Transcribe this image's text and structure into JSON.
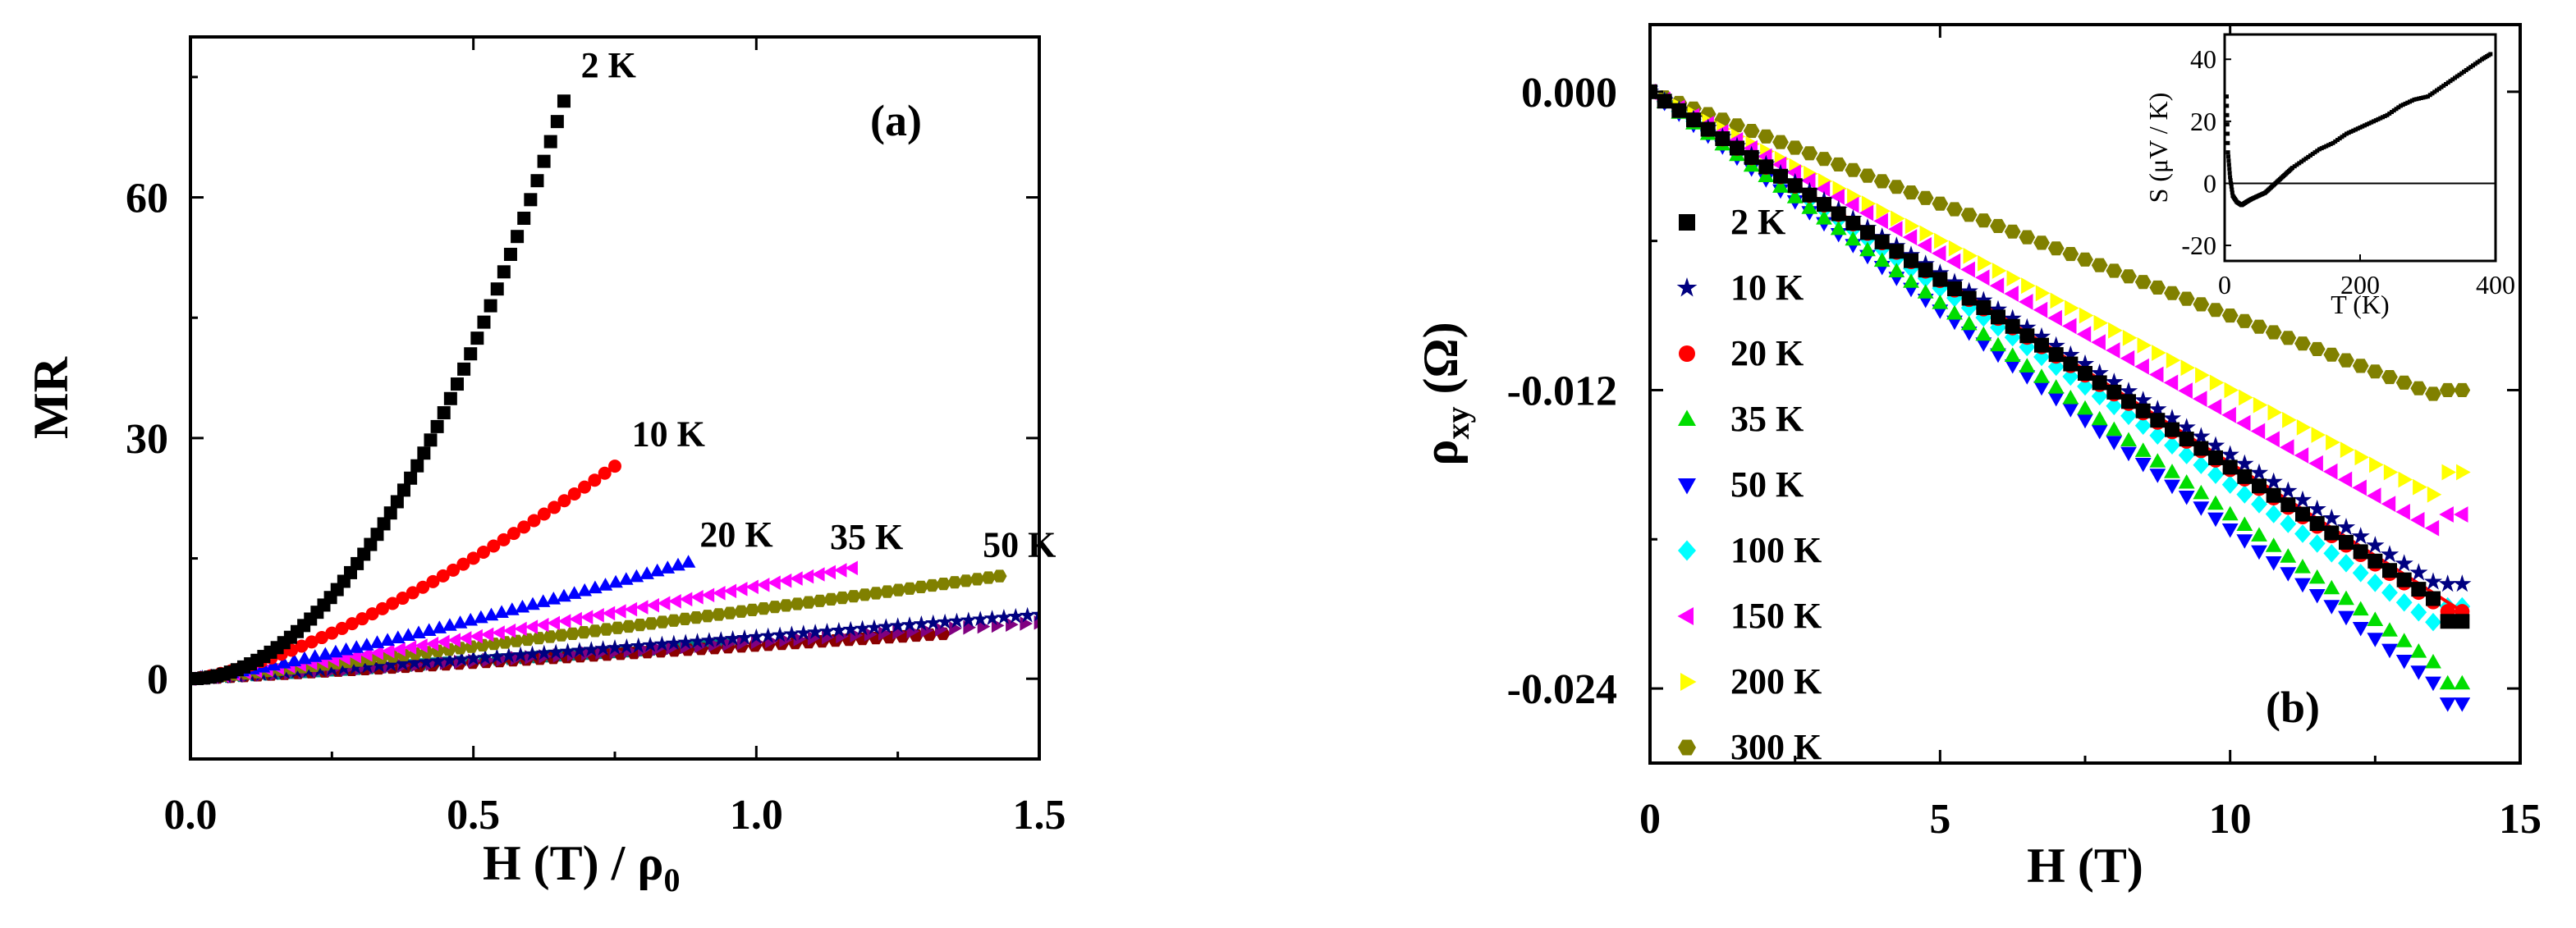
{
  "chart_data": [
    {
      "type": "scatter",
      "panel_label": "(a)",
      "ylabel": "MR",
      "xlabel_main": "H (T) / ρ",
      "xlabel_sub": "0",
      "xlim": [
        0,
        1.5
      ],
      "ylim": [
        -10,
        80
      ],
      "xticks": [
        {
          "v": 0,
          "label": "0.0"
        },
        {
          "v": 0.5,
          "label": "0.5"
        },
        {
          "v": 1.0,
          "label": "1.0"
        },
        {
          "v": 1.5,
          "label": "1.5"
        }
      ],
      "yticks": [
        {
          "v": 0,
          "label": "0"
        },
        {
          "v": 30,
          "label": "30"
        },
        {
          "v": 60,
          "label": "60"
        }
      ],
      "series": [
        {
          "label": "2 K",
          "color": "#000000",
          "marker": "square",
          "xmax": 0.66,
          "ymax": 72,
          "exp": 2.0,
          "n": 56,
          "label_pos": [
            0.69,
            75
          ]
        },
        {
          "label": "10 K",
          "color": "#ff0000",
          "marker": "circle",
          "xmax": 0.75,
          "ymax": 26.5,
          "exp": 1.4,
          "n": 42,
          "label_pos": [
            0.78,
            29
          ]
        },
        {
          "label": "20 K",
          "color": "#0000ff",
          "marker": "tri-up",
          "xmax": 0.88,
          "ymax": 14.5,
          "exp": 1.2,
          "n": 48,
          "label_pos": [
            0.9,
            16.5
          ]
        },
        {
          "label": "35 K",
          "color": "#ff00ff",
          "marker": "tri-left",
          "xmax": 1.17,
          "ymax": 13.8,
          "exp": 1.15,
          "n": 60,
          "label_pos": [
            1.13,
            16.2
          ]
        },
        {
          "label": "50 K",
          "color": "#808000",
          "marker": "hexagon",
          "xmax": 1.43,
          "ymax": 12.8,
          "exp": 1.1,
          "n": 72,
          "label_pos": [
            1.4,
            15.2
          ]
        },
        {
          "label": "",
          "color": "#000080",
          "marker": "star",
          "xmax": 1.5,
          "ymax": 8,
          "exp": 1.05,
          "n": 72
        },
        {
          "label": "",
          "color": "#800080",
          "marker": "tri-right",
          "xmax": 1.5,
          "ymax": 7,
          "exp": 1.05,
          "n": 60
        },
        {
          "label": "",
          "color": "#8b0000",
          "marker": "hexagon",
          "xmax": 1.33,
          "ymax": 5.6,
          "exp": 1.05,
          "n": 56
        },
        {
          "label": "",
          "color": "#008080",
          "marker": "hexagon",
          "xmax": 0.95,
          "ymax": 4.3,
          "exp": 1.05,
          "n": 42
        }
      ]
    },
    {
      "type": "scatter",
      "panel_label": "(b)",
      "ylabel_main": "ρ",
      "ylabel_sub": "xy",
      "ylabel_unit": "(Ω)",
      "xlabel": "H (T)",
      "xlim": [
        0,
        15
      ],
      "ylim": [
        -0.027,
        0.0027
      ],
      "xticks": [
        {
          "v": 0,
          "label": "0"
        },
        {
          "v": 5,
          "label": "5"
        },
        {
          "v": 10,
          "label": "10"
        },
        {
          "v": 15,
          "label": "15"
        }
      ],
      "yticks": [
        {
          "v": 0,
          "label": "0.000"
        },
        {
          "v": -0.012,
          "label": "-0.012"
        },
        {
          "v": -0.024,
          "label": "-0.024"
        }
      ],
      "series": [
        {
          "name": "2 K",
          "color": "#000000",
          "marker": "square",
          "slope": -0.00151,
          "end": -0.0213
        },
        {
          "name": "10 K",
          "color": "#000080",
          "marker": "star",
          "slope": -0.00146,
          "end": -0.0198
        },
        {
          "name": "20 K",
          "color": "#ff0000",
          "marker": "circle",
          "slope": -0.00152,
          "end": -0.0209
        },
        {
          "name": "35 K",
          "color": "#00dd00",
          "marker": "tri-up",
          "slope": -0.0017,
          "end": -0.0238
        },
        {
          "name": "50 K",
          "color": "#0000ff",
          "marker": "tri-down",
          "slope": -0.00176,
          "end": -0.0246
        },
        {
          "name": "100 K",
          "color": "#00ffff",
          "marker": "diamond",
          "slope": -0.00158,
          "end": -0.0207
        },
        {
          "name": "150 K",
          "color": "#ff00ff",
          "marker": "tri-left",
          "slope": -0.0013,
          "end": -0.017
        },
        {
          "name": "200 K",
          "color": "#ffff00",
          "marker": "tri-right",
          "slope": -0.0012,
          "end": -0.0153
        },
        {
          "name": "300 K",
          "color": "#808000",
          "marker": "hexagon",
          "slope": -0.0009,
          "end": -0.012
        }
      ],
      "inset": {
        "xlabel": "T (K)",
        "ylabel": "S (μV / K)",
        "xlim": [
          0,
          400
        ],
        "ylim": [
          -25,
          48
        ],
        "xticks": [
          {
            "v": 0,
            "label": "0"
          },
          {
            "v": 200,
            "label": "200"
          },
          {
            "v": 400,
            "label": "400"
          }
        ],
        "yticks": [
          {
            "v": -20,
            "label": "-20"
          },
          {
            "v": 0,
            "label": "0"
          },
          {
            "v": 20,
            "label": "20"
          },
          {
            "v": 40,
            "label": "40"
          }
        ],
        "hline": 0,
        "points": [
          [
            3,
            28
          ],
          [
            5,
            10
          ],
          [
            8,
            2
          ],
          [
            12,
            -4
          ],
          [
            18,
            -6
          ],
          [
            25,
            -7
          ],
          [
            32,
            -6
          ],
          [
            40,
            -5
          ],
          [
            50,
            -4
          ],
          [
            60,
            -3
          ],
          [
            70,
            -1
          ],
          [
            80,
            1
          ],
          [
            90,
            3
          ],
          [
            100,
            5
          ],
          [
            120,
            8
          ],
          [
            140,
            11
          ],
          [
            160,
            13
          ],
          [
            180,
            16
          ],
          [
            200,
            18
          ],
          [
            220,
            20
          ],
          [
            240,
            22
          ],
          [
            260,
            25
          ],
          [
            280,
            27
          ],
          [
            300,
            28
          ],
          [
            320,
            31
          ],
          [
            340,
            34
          ],
          [
            360,
            37
          ],
          [
            380,
            40
          ],
          [
            395,
            42
          ]
        ]
      }
    }
  ]
}
